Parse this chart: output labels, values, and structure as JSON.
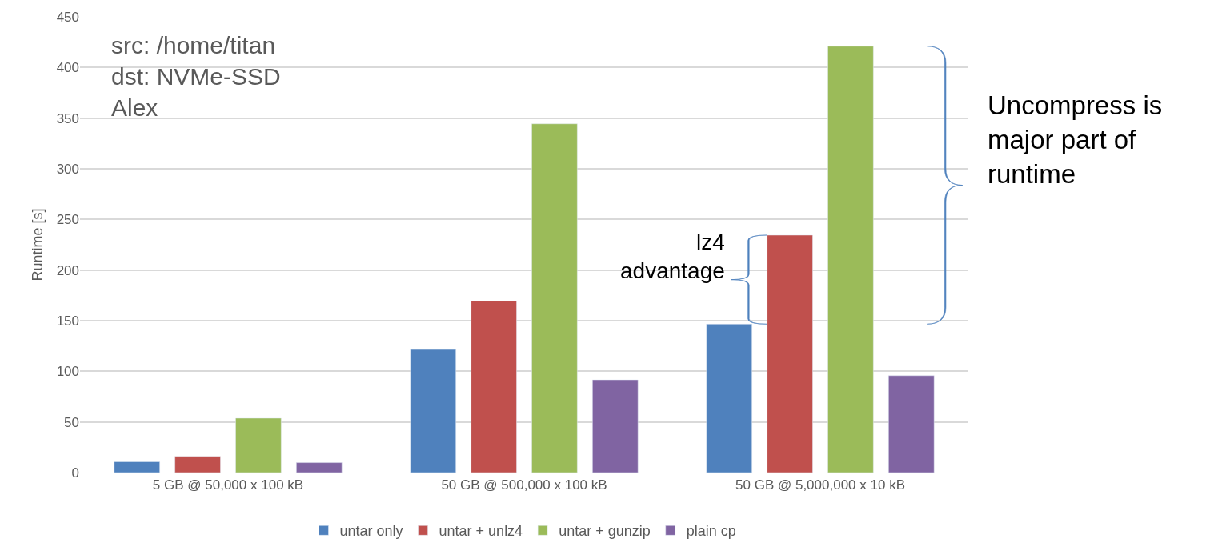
{
  "chart_data": {
    "type": "bar",
    "ylabel": "Runtime [s]",
    "categories": [
      "5 GB @ 50,000 x 100 kB",
      "50 GB @ 500,000 x 100 kB",
      "50 GB @ 5,000,000 x 10 kB"
    ],
    "series": [
      {
        "name": "untar only",
        "color": "#4f81bd",
        "values": [
          10.7,
          121.5,
          146.6
        ]
      },
      {
        "name": "untar + unlz4",
        "color": "#c0504d",
        "values": [
          15.9,
          169.4,
          234.5
        ]
      },
      {
        "name": "untar + gunzip",
        "color": "#9bbb59",
        "values": [
          53.7,
          344.4,
          421
        ]
      },
      {
        "name": "plain cp",
        "color": "#8064a2",
        "values": [
          9.8,
          91.6,
          95.7
        ]
      }
    ],
    "ylim": [
      0,
      450
    ],
    "yticks": [
      0,
      50,
      100,
      150,
      200,
      250,
      300,
      350,
      400,
      450
    ],
    "grid": "y",
    "legend": "bottom",
    "annotations": [
      "src: /home/titan\ndst: NVMe-SSD\nAlex",
      "lz4\nadvantage",
      "Uncompress is\nmajor part of\nruntime"
    ]
  }
}
